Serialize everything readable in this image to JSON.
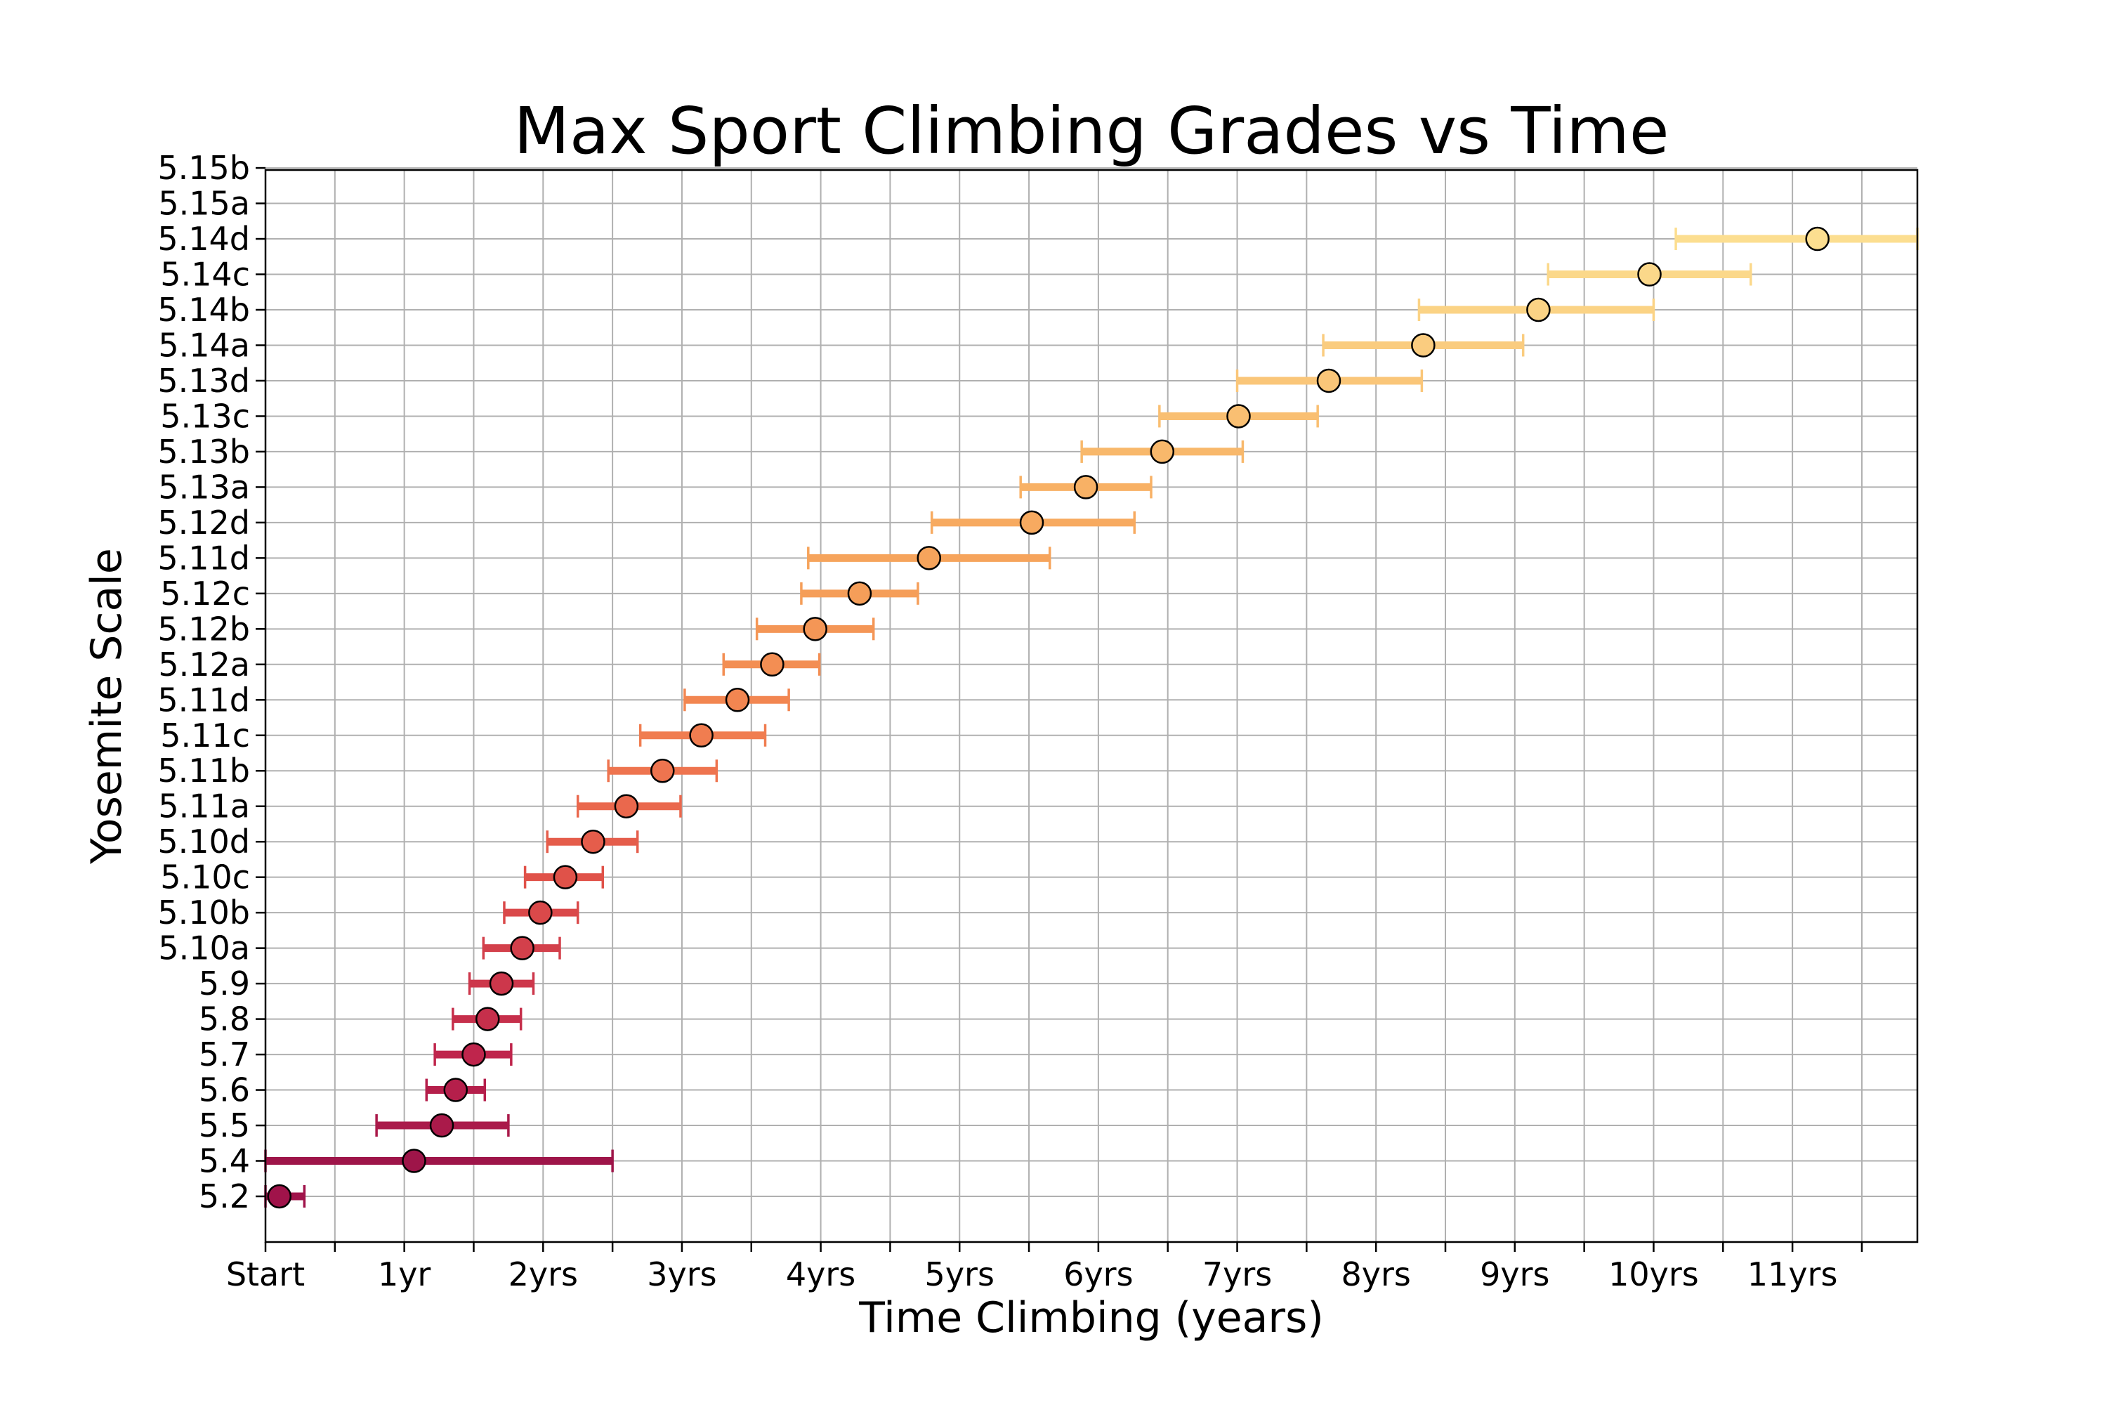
{
  "chart_data": {
    "type": "scatter",
    "title": "Max Sport Climbing Grades vs Time",
    "xlabel": "Time Climbing (years)",
    "ylabel": "Yosemite Scale",
    "x_unit": "years",
    "xlim": [
      0,
      11.9
    ],
    "x_ticks": [
      {
        "value": 0,
        "label": "Start"
      },
      {
        "value": 1,
        "label": "1yr"
      },
      {
        "value": 2,
        "label": "2yrs"
      },
      {
        "value": 3,
        "label": "3yrs"
      },
      {
        "value": 4,
        "label": "4yrs"
      },
      {
        "value": 5,
        "label": "5yrs"
      },
      {
        "value": 6,
        "label": "6yrs"
      },
      {
        "value": 7,
        "label": "7yrs"
      },
      {
        "value": 8,
        "label": "8yrs"
      },
      {
        "value": 9,
        "label": "9yrs"
      },
      {
        "value": 10,
        "label": "10yrs"
      },
      {
        "value": 11,
        "label": "11yrs"
      }
    ],
    "x_minor_ticks": [
      0.5,
      1.5,
      2.5,
      3.5,
      4.5,
      5.5,
      6.5,
      7.5,
      8.5,
      9.5,
      10.5,
      11.5
    ],
    "y_categories": [
      "5.2",
      "5.4",
      "5.5",
      "5.6",
      "5.7",
      "5.8",
      "5.9",
      "5.10a",
      "5.10b",
      "5.10c",
      "5.10d",
      "5.11a",
      "5.11b",
      "5.11c",
      "5.11d",
      "5.12a",
      "5.12b",
      "5.12c",
      "5.11d",
      "5.12d",
      "5.13a",
      "5.13b",
      "5.13c",
      "5.13d",
      "5.14a",
      "5.14b",
      "5.14c",
      "5.14d",
      "5.15a",
      "5.15b"
    ],
    "grid": true,
    "colormap_hint": "dark crimson (early) to pale yellow (late)",
    "points": [
      {
        "grade": "5.2",
        "x": 0.1,
        "xerr_low": 0.0,
        "xerr_high": 0.28,
        "color": "#a0134a"
      },
      {
        "grade": "5.4",
        "x": 1.07,
        "xerr_low": 0.0,
        "xerr_high": 2.5,
        "color": "#9e1549"
      },
      {
        "grade": "5.5",
        "x": 1.27,
        "xerr_low": 0.8,
        "xerr_high": 1.75,
        "color": "#aa1a4a"
      },
      {
        "grade": "5.6",
        "x": 1.37,
        "xerr_low": 1.16,
        "xerr_high": 1.58,
        "color": "#b51f4b"
      },
      {
        "grade": "5.7",
        "x": 1.5,
        "xerr_low": 1.22,
        "xerr_high": 1.77,
        "color": "#bf254c"
      },
      {
        "grade": "5.8",
        "x": 1.6,
        "xerr_low": 1.35,
        "xerr_high": 1.84,
        "color": "#c62f4b"
      },
      {
        "grade": "5.9",
        "x": 1.7,
        "xerr_low": 1.47,
        "xerr_high": 1.93,
        "color": "#cd374b"
      },
      {
        "grade": "5.10a",
        "x": 1.85,
        "xerr_low": 1.57,
        "xerr_high": 2.12,
        "color": "#d3404b"
      },
      {
        "grade": "5.10b",
        "x": 1.98,
        "xerr_low": 1.72,
        "xerr_high": 2.25,
        "color": "#da494a"
      },
      {
        "grade": "5.10c",
        "x": 2.16,
        "xerr_low": 1.87,
        "xerr_high": 2.43,
        "color": "#e05249"
      },
      {
        "grade": "5.10d",
        "x": 2.36,
        "xerr_low": 2.03,
        "xerr_high": 2.68,
        "color": "#e55d4b"
      },
      {
        "grade": "5.11a",
        "x": 2.6,
        "xerr_low": 2.25,
        "xerr_high": 2.99,
        "color": "#ea684d"
      },
      {
        "grade": "5.11b",
        "x": 2.86,
        "xerr_low": 2.47,
        "xerr_high": 3.25,
        "color": "#ee744f"
      },
      {
        "grade": "5.11c",
        "x": 3.14,
        "xerr_low": 2.7,
        "xerr_high": 3.6,
        "color": "#f07d50"
      },
      {
        "grade": "5.11d",
        "x": 3.4,
        "xerr_low": 3.02,
        "xerr_high": 3.77,
        "color": "#f28651"
      },
      {
        "grade": "5.12a",
        "x": 3.65,
        "xerr_low": 3.3,
        "xerr_high": 3.99,
        "color": "#f38e53"
      },
      {
        "grade": "5.12b",
        "x": 3.96,
        "xerr_low": 3.54,
        "xerr_high": 4.38,
        "color": "#f49656"
      },
      {
        "grade": "5.12c",
        "x": 4.28,
        "xerr_low": 3.86,
        "xerr_high": 4.7,
        "color": "#f59e59"
      },
      {
        "grade": "5.11d",
        "x": 4.78,
        "xerr_low": 3.91,
        "xerr_high": 5.65,
        "color": "#f6a45c"
      },
      {
        "grade": "5.12d",
        "x": 5.52,
        "xerr_low": 4.8,
        "xerr_high": 6.26,
        "color": "#f7aa60"
      },
      {
        "grade": "5.13a",
        "x": 5.91,
        "xerr_low": 5.44,
        "xerr_high": 6.38,
        "color": "#f8b165"
      },
      {
        "grade": "5.13b",
        "x": 6.46,
        "xerr_low": 5.88,
        "xerr_high": 7.04,
        "color": "#f8b86b"
      },
      {
        "grade": "5.13c",
        "x": 7.01,
        "xerr_low": 6.44,
        "xerr_high": 7.58,
        "color": "#f9bf72"
      },
      {
        "grade": "5.13d",
        "x": 7.66,
        "xerr_low": 7.0,
        "xerr_high": 8.33,
        "color": "#fac679"
      },
      {
        "grade": "5.14a",
        "x": 8.34,
        "xerr_low": 7.62,
        "xerr_high": 9.06,
        "color": "#facc7f"
      },
      {
        "grade": "5.14b",
        "x": 9.17,
        "xerr_low": 8.31,
        "xerr_high": 10.0,
        "color": "#fbd385"
      },
      {
        "grade": "5.14c",
        "x": 9.97,
        "xerr_low": 9.24,
        "xerr_high": 10.7,
        "color": "#fbd88a"
      },
      {
        "grade": "5.14d",
        "x": 11.18,
        "xerr_low": 10.16,
        "xerr_high": 11.9,
        "color": "#fcde90"
      }
    ]
  }
}
